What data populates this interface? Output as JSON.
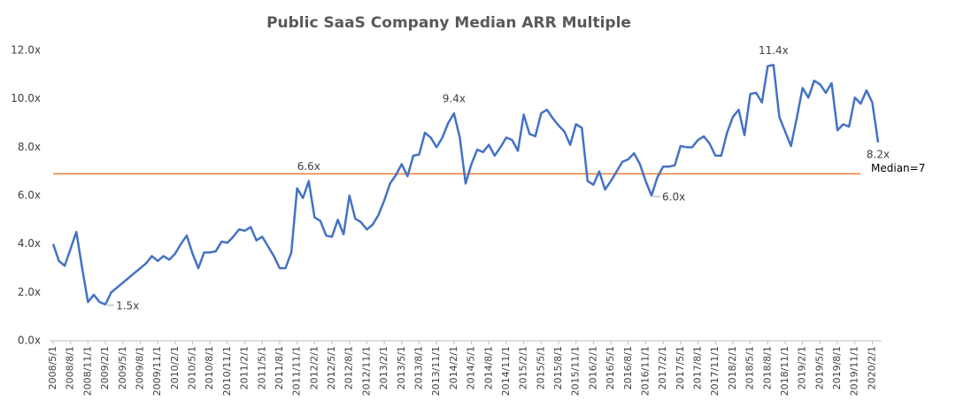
{
  "chart_data": {
    "type": "line",
    "title": "Public SaaS Company Median ARR Multiple",
    "categories": [
      "2008/5/1",
      null,
      null,
      "2008/8/1",
      null,
      null,
      "2008/11/1",
      null,
      null,
      "2009/2/1",
      null,
      null,
      "2009/5/1",
      null,
      null,
      "2009/8/1",
      null,
      null,
      "2009/11/1",
      null,
      null,
      "2010/2/1",
      null,
      null,
      "2010/5/1",
      null,
      null,
      "2010/8/1",
      null,
      null,
      "2010/11/1",
      null,
      null,
      "2011/2/1",
      null,
      null,
      "2011/5/1",
      null,
      null,
      "2011/8/1",
      null,
      null,
      "2011/11/1",
      null,
      null,
      "2012/2/1",
      null,
      null,
      "2012/5/1",
      null,
      null,
      "2012/8/1",
      null,
      null,
      "2012/11/1",
      null,
      null,
      "2013/2/1",
      null,
      null,
      "2013/5/1",
      null,
      null,
      "2013/8/1",
      null,
      null,
      "2013/11/1",
      null,
      null,
      "2014/2/1",
      null,
      null,
      "2014/5/1",
      null,
      null,
      "2014/8/1",
      null,
      null,
      "2014/11/1",
      null,
      null,
      "2015/2/1",
      null,
      null,
      "2015/5/1",
      null,
      null,
      "2015/8/1",
      null,
      null,
      "2015/11/1",
      null,
      null,
      "2016/2/1",
      null,
      null,
      "2016/5/1",
      null,
      null,
      "2016/8/1",
      null,
      null,
      "2016/11/1",
      null,
      null,
      "2017/2/1",
      null,
      null,
      "2017/5/1",
      null,
      null,
      "2017/8/1",
      null,
      null,
      "2017/11/1",
      null,
      null,
      "2018/2/1",
      null,
      null,
      "2018/5/1",
      null,
      null,
      "2018/8/1",
      null,
      null,
      "2018/11/1",
      null,
      null,
      "2019/2/1",
      null,
      null,
      "2019/5/1",
      null,
      null,
      "2019/8/1",
      null,
      null,
      "2019/11/1",
      null,
      null,
      "2020/2/1",
      null
    ],
    "series": [
      {
        "color": "#4472c4",
        "values": [
          4.0,
          3.3,
          3.1,
          3.8,
          4.5,
          3.0,
          1.6,
          1.9,
          1.6,
          1.5,
          2.0,
          2.2,
          2.4,
          2.6,
          2.8,
          3.0,
          3.2,
          3.5,
          3.3,
          3.5,
          3.35,
          3.6,
          4.0,
          4.35,
          3.6,
          3.0,
          3.65,
          3.65,
          3.7,
          4.1,
          4.05,
          4.3,
          4.6,
          4.55,
          4.7,
          4.15,
          4.3,
          3.9,
          3.5,
          3.0,
          3.0,
          3.65,
          6.3,
          5.9,
          6.6,
          5.1,
          4.95,
          4.35,
          4.3,
          5.0,
          4.4,
          6.0,
          5.05,
          4.9,
          4.6,
          4.8,
          5.2,
          5.8,
          6.5,
          6.85,
          7.3,
          6.8,
          7.65,
          7.7,
          8.6,
          8.4,
          8.0,
          8.4,
          9.0,
          9.4,
          8.4,
          6.5,
          7.3,
          7.9,
          7.8,
          8.1,
          7.65,
          8.0,
          8.4,
          8.3,
          7.85,
          9.35,
          8.55,
          8.45,
          9.4,
          9.55,
          9.2,
          8.9,
          8.65,
          8.1,
          8.95,
          8.8,
          6.6,
          6.45,
          7.0,
          6.25,
          6.6,
          7.0,
          7.4,
          7.5,
          7.75,
          7.3,
          6.6,
          6.0,
          6.75,
          7.2,
          7.2,
          7.25,
          8.05,
          8.0,
          8.0,
          8.3,
          8.45,
          8.15,
          7.65,
          7.65,
          8.6,
          9.25,
          9.55,
          8.5,
          10.2,
          10.25,
          9.85,
          11.35,
          11.4,
          9.25,
          8.65,
          8.05,
          9.2,
          10.45,
          10.05,
          10.75,
          10.6,
          10.25,
          10.65,
          8.7,
          8.95,
          8.85,
          10.05,
          9.8,
          10.35,
          9.85,
          8.2
        ],
        "value_labels": [
          null,
          null,
          null,
          null,
          null,
          null,
          null,
          null,
          null,
          "1.5x",
          null,
          null,
          null,
          null,
          null,
          null,
          null,
          null,
          null,
          null,
          null,
          null,
          null,
          null,
          null,
          null,
          null,
          null,
          null,
          null,
          null,
          null,
          null,
          null,
          null,
          null,
          null,
          null,
          null,
          null,
          null,
          null,
          null,
          null,
          "6.6x",
          null,
          null,
          null,
          null,
          null,
          null,
          null,
          null,
          null,
          null,
          null,
          null,
          null,
          null,
          null,
          null,
          null,
          null,
          null,
          null,
          null,
          null,
          null,
          null,
          "9.4x",
          null,
          null,
          null,
          null,
          null,
          null,
          null,
          null,
          null,
          null,
          null,
          null,
          null,
          null,
          null,
          null,
          null,
          null,
          null,
          null,
          null,
          null,
          null,
          null,
          null,
          null,
          null,
          null,
          null,
          null,
          null,
          null,
          null,
          "6.0x",
          null,
          null,
          null,
          null,
          null,
          null,
          null,
          null,
          null,
          null,
          null,
          null,
          null,
          null,
          null,
          null,
          null,
          null,
          null,
          null,
          "11.4x",
          null,
          null,
          null,
          null,
          null,
          null,
          null,
          null,
          null,
          null,
          null,
          null,
          null,
          null,
          null,
          null,
          null,
          "8.2x"
        ]
      }
    ],
    "median": {
      "value": 6.9,
      "label": "Median=7",
      "color": "#ed7d31"
    },
    "ylim": [
      0,
      12
    ],
    "yticks": [
      {
        "value": 0,
        "label": "0.0x"
      },
      {
        "value": 2,
        "label": "2.0x"
      },
      {
        "value": 4,
        "label": "4.0x"
      },
      {
        "value": 6,
        "label": "6.0x"
      },
      {
        "value": 8,
        "label": "8.0x"
      },
      {
        "value": 10,
        "label": "10.0x"
      },
      {
        "value": 12,
        "label": "12.0x"
      }
    ],
    "grid": false
  }
}
